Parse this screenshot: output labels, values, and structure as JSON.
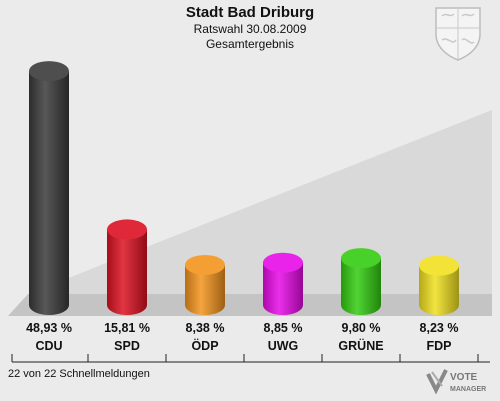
{
  "header": {
    "title": "Stadt Bad Driburg",
    "subtitle": "Ratswahl 30.08.2009",
    "subtitle2": "Gesamtergebnis"
  },
  "footer": {
    "status": "22 von 22 Schnellmeldungen",
    "logo_line1": "VOTE",
    "logo_line2": "MANAGER"
  },
  "icons": {
    "crest": "coat-of-arms-icon",
    "logo": "vote-manager-logo-icon"
  },
  "chart_data": {
    "type": "bar",
    "categories": [
      "CDU",
      "SPD",
      "ÖDP",
      "UWG",
      "GRÜNE",
      "FDP"
    ],
    "values": [
      48.93,
      15.81,
      8.38,
      8.85,
      9.8,
      8.23
    ],
    "value_labels": [
      "48,93 %",
      "15,81 %",
      "8,38 %",
      "8,85 %",
      "9,80 %",
      "8,23 %"
    ],
    "colors": [
      "#3a3a3a",
      "#dd1122",
      "#f3941d",
      "#e60ae6",
      "#33cc11",
      "#f0e020"
    ],
    "ylim": [
      0,
      50
    ],
    "grid": false,
    "legend": "none"
  }
}
